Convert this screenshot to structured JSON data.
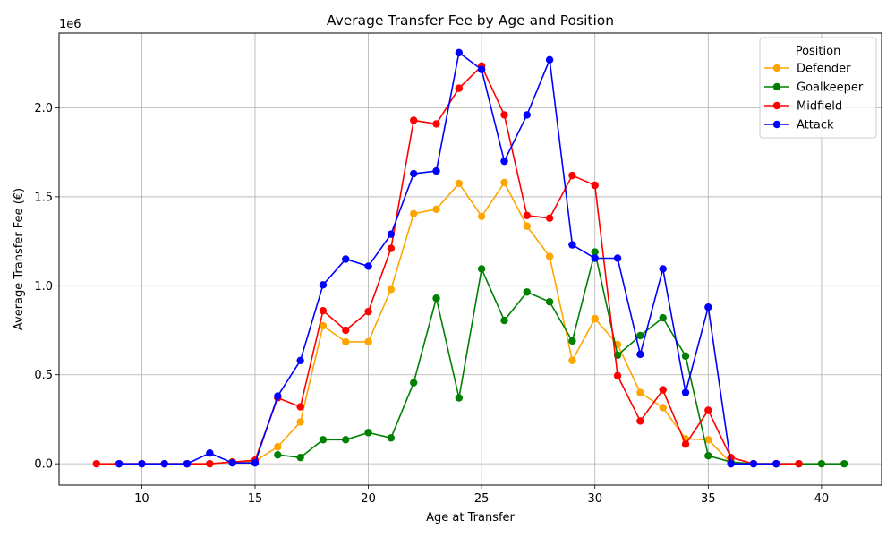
{
  "chart_data": {
    "type": "line",
    "title": "Average Transfer Fee by Age and Position",
    "xlabel": "Age at Transfer",
    "ylabel": "Average Transfer Fee (€)",
    "y_offset_label": "1e6",
    "y_scale": 1000000,
    "xlim": [
      6.35,
      42.65
    ],
    "ylim": [
      -120000,
      2420000
    ],
    "x_ticks": [
      10,
      15,
      20,
      25,
      30,
      35,
      40
    ],
    "y_ticks": [
      0,
      500000,
      1000000,
      1500000,
      2000000
    ],
    "y_tick_labels": [
      "0.0",
      "0.5",
      "1.0",
      "1.5",
      "2.0"
    ],
    "grid": true,
    "legend": {
      "title": "Position",
      "placement": "top-right"
    },
    "series": [
      {
        "name": "Defender",
        "color": "#ffa500",
        "x": [
          9,
          10,
          11,
          12,
          13,
          14,
          15,
          16,
          17,
          18,
          19,
          20,
          21,
          22,
          23,
          24,
          25,
          26,
          27,
          28,
          29,
          30,
          31,
          32,
          33,
          34,
          35,
          36,
          37,
          38
        ],
        "y": [
          0,
          0,
          0,
          0,
          0,
          10000,
          15000,
          95000,
          235000,
          775000,
          685000,
          685000,
          980000,
          1405000,
          1430000,
          1575000,
          1390000,
          1580000,
          1335000,
          1165000,
          580000,
          815000,
          670000,
          400000,
          315000,
          140000,
          135000,
          5000,
          0,
          0
        ]
      },
      {
        "name": "Goalkeeper",
        "color": "#008000",
        "x": [
          16,
          17,
          18,
          19,
          20,
          21,
          22,
          23,
          24,
          25,
          26,
          27,
          28,
          29,
          30,
          31,
          32,
          33,
          34,
          35,
          36,
          37,
          38,
          39,
          40,
          41
        ],
        "y": [
          50000,
          35000,
          135000,
          135000,
          175000,
          145000,
          455000,
          930000,
          370000,
          1095000,
          805000,
          965000,
          910000,
          690000,
          1190000,
          610000,
          720000,
          820000,
          605000,
          45000,
          10000,
          0,
          0,
          0,
          0,
          0
        ]
      },
      {
        "name": "Midfield",
        "color": "#ff0000",
        "x": [
          8,
          9,
          10,
          11,
          12,
          13,
          14,
          15,
          16,
          17,
          18,
          19,
          20,
          21,
          22,
          23,
          24,
          25,
          26,
          27,
          28,
          29,
          30,
          31,
          32,
          33,
          34,
          35,
          36,
          37,
          38,
          39
        ],
        "y": [
          0,
          0,
          0,
          0,
          0,
          0,
          10000,
          20000,
          370000,
          320000,
          860000,
          750000,
          855000,
          1210000,
          1930000,
          1910000,
          2110000,
          2235000,
          1960000,
          1395000,
          1380000,
          1620000,
          1565000,
          495000,
          240000,
          415000,
          110000,
          300000,
          35000,
          0,
          0,
          0
        ]
      },
      {
        "name": "Attack",
        "color": "#0000ff",
        "x": [
          9,
          10,
          11,
          12,
          13,
          14,
          15,
          16,
          17,
          18,
          19,
          20,
          21,
          22,
          23,
          24,
          25,
          26,
          27,
          28,
          29,
          30,
          31,
          32,
          33,
          34,
          35,
          36,
          37,
          38
        ],
        "y": [
          0,
          0,
          0,
          0,
          60000,
          5000,
          5000,
          380000,
          580000,
          1005000,
          1150000,
          1110000,
          1290000,
          1630000,
          1645000,
          2310000,
          2215000,
          1700000,
          1960000,
          2270000,
          1230000,
          1155000,
          1155000,
          615000,
          1095000,
          400000,
          880000,
          0,
          0,
          0
        ]
      }
    ]
  }
}
